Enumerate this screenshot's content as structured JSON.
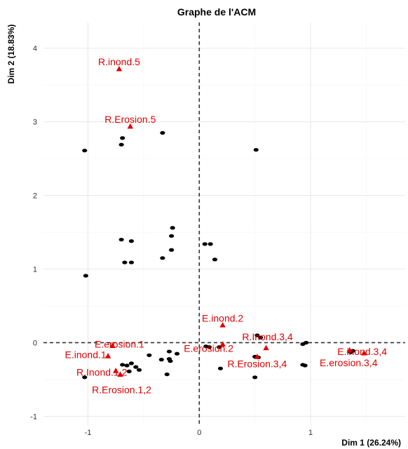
{
  "chart_data": {
    "type": "scatter",
    "title": "Graphe de l'ACM",
    "xlabel": "Dim 1 (26.24%)",
    "ylabel": "Dim 2 (18.83%)",
    "xlim": [
      -1.4,
      1.85
    ],
    "ylim": [
      -1.12,
      4.35
    ],
    "xticks": [
      -1,
      0,
      1
    ],
    "yticks": [
      -1,
      0,
      1,
      2,
      3,
      4
    ],
    "grid": true,
    "reference_lines": {
      "x": 0,
      "y": 0
    },
    "colors": {
      "individuals": "#000000",
      "variables": "#e00000"
    },
    "individuals": [
      {
        "x": -1.03,
        "y": 2.61
      },
      {
        "x": -0.69,
        "y": 2.78
      },
      {
        "x": -0.7,
        "y": 2.69
      },
      {
        "x": -0.33,
        "y": 2.85
      },
      {
        "x": 0.51,
        "y": 2.62
      },
      {
        "x": -0.24,
        "y": 1.56
      },
      {
        "x": -0.25,
        "y": 1.45
      },
      {
        "x": -0.7,
        "y": 1.4
      },
      {
        "x": -0.61,
        "y": 1.38
      },
      {
        "x": 0.05,
        "y": 1.34
      },
      {
        "x": 0.1,
        "y": 1.34
      },
      {
        "x": -0.25,
        "y": 1.26
      },
      {
        "x": -0.33,
        "y": 1.15
      },
      {
        "x": 0.14,
        "y": 1.13
      },
      {
        "x": -0.67,
        "y": 1.09
      },
      {
        "x": -0.61,
        "y": 1.09
      },
      {
        "x": -1.02,
        "y": 0.91
      },
      {
        "x": 0.52,
        "y": 0.1
      },
      {
        "x": 0.55,
        "y": 0.07
      },
      {
        "x": 0.96,
        "y": 0.0
      },
      {
        "x": 0.93,
        "y": -0.02
      },
      {
        "x": 0.06,
        "y": -0.05
      },
      {
        "x": 0.09,
        "y": -0.06
      },
      {
        "x": 0.18,
        "y": -0.06
      },
      {
        "x": -0.27,
        "y": -0.12
      },
      {
        "x": -0.2,
        "y": -0.15
      },
      {
        "x": -0.45,
        "y": -0.17
      },
      {
        "x": -0.27,
        "y": -0.22
      },
      {
        "x": -0.34,
        "y": -0.23
      },
      {
        "x": -0.26,
        "y": -0.25
      },
      {
        "x": -0.61,
        "y": -0.28
      },
      {
        "x": -0.69,
        "y": -0.3
      },
      {
        "x": -0.65,
        "y": -0.31
      },
      {
        "x": -0.57,
        "y": -0.33
      },
      {
        "x": -0.54,
        "y": -0.37
      },
      {
        "x": -0.63,
        "y": -0.39
      },
      {
        "x": 0.5,
        "y": -0.19
      },
      {
        "x": 0.53,
        "y": -0.2
      },
      {
        "x": 0.93,
        "y": -0.3
      },
      {
        "x": 0.95,
        "y": -0.31
      },
      {
        "x": 0.19,
        "y": -0.35
      },
      {
        "x": 0.5,
        "y": -0.47
      },
      {
        "x": -1.03,
        "y": -0.47
      },
      {
        "x": -0.29,
        "y": -0.43
      },
      {
        "x": 1.38,
        "y": -0.11
      },
      {
        "x": 1.36,
        "y": -0.13
      }
    ],
    "variables": [
      {
        "label": "R.inond.5",
        "x": -0.72,
        "y": 3.72,
        "label_dx": 0,
        "label_dy": -10,
        "anchor": "middle"
      },
      {
        "label": "R.Erosion.5",
        "x": -0.62,
        "y": 2.94,
        "label_dx": 0,
        "label_dy": -10,
        "anchor": "middle"
      },
      {
        "label": "E.inond.2",
        "x": 0.21,
        "y": 0.24,
        "label_dx": 0,
        "label_dy": -10,
        "anchor": "middle"
      },
      {
        "label": "R.Inond.3,4",
        "x": 0.6,
        "y": -0.07,
        "label_dx": 2,
        "label_dy": -16,
        "anchor": "middle"
      },
      {
        "label": "E.erosion.1",
        "x": -0.78,
        "y": -0.04,
        "label_dx": 10,
        "label_dy": -2,
        "anchor": "middle"
      },
      {
        "label": "E.erosion.2",
        "x": 0.21,
        "y": -0.02,
        "label_dx": -20,
        "label_dy": 6,
        "anchor": "middle"
      },
      {
        "label": "E.inond.1",
        "x": -0.82,
        "y": -0.18,
        "label_dx": -32,
        "label_dy": -2,
        "anchor": "middle"
      },
      {
        "label": "R.Erosion.3,4",
        "x": 0.52,
        "y": -0.19,
        "label_dx": 0,
        "label_dy": 10,
        "anchor": "middle"
      },
      {
        "label": "E.inond.3,4",
        "x": 1.35,
        "y": -0.1,
        "label_dx": 18,
        "label_dy": 2,
        "anchor": "middle"
      },
      {
        "label": "E.erosion.3,4",
        "x": 1.48,
        "y": -0.14,
        "label_dx": -22,
        "label_dy": 14,
        "anchor": "middle"
      },
      {
        "label": "R.Inond.1,2",
        "x": -0.75,
        "y": -0.38,
        "label_dx": -20,
        "label_dy": 2,
        "anchor": "middle"
      },
      {
        "label": "R.Erosion.1,2",
        "x": -0.71,
        "y": -0.43,
        "label_dx": 2,
        "label_dy": 22,
        "anchor": "middle"
      }
    ]
  }
}
